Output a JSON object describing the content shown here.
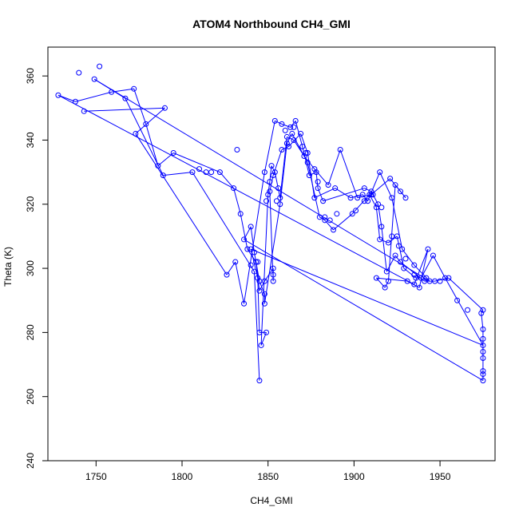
{
  "chart_data": {
    "type": "line",
    "title": "ATOM4 Northbound CH4_GMI",
    "xlabel": "CH4_GMI",
    "ylabel": "Theta (K)",
    "xlim": [
      1722,
      1982
    ],
    "ylim": [
      240,
      369
    ],
    "x_ticks": [
      1750,
      1800,
      1850,
      1900,
      1950
    ],
    "y_ticks": [
      240,
      260,
      280,
      300,
      320,
      340,
      360
    ],
    "grid": false,
    "legend": "none",
    "series_color": "#0000ff",
    "marker": "open-circle",
    "series": [
      {
        "name": "",
        "points": [
          [
            1743,
            349
          ],
          [
            1790,
            350
          ],
          [
            1773,
            342
          ],
          [
            1826,
            298
          ],
          [
            1831,
            302
          ],
          [
            1836,
            289
          ],
          [
            1848,
            330
          ],
          [
            1854,
            346
          ],
          [
            1858,
            345
          ],
          [
            1863,
            344
          ],
          [
            1866,
            346
          ],
          [
            1870,
            338
          ],
          [
            1874,
            329
          ],
          [
            1878,
            330
          ],
          [
            1879,
            325
          ],
          [
            1882,
            321
          ],
          [
            1906,
            325
          ],
          [
            1910,
            324
          ],
          [
            1914,
            320
          ],
          [
            1916,
            313
          ],
          [
            1919,
            299
          ],
          [
            1924,
            304
          ],
          [
            1927,
            302
          ],
          [
            1941,
            296
          ],
          [
            1947,
            296
          ],
          [
            1955,
            297
          ],
          [
            1975,
            287
          ],
          [
            1974,
            286
          ],
          [
            1975,
            281
          ],
          [
            1975,
            278
          ],
          [
            1975,
            274
          ],
          [
            1975,
            272
          ],
          [
            1975,
            268
          ],
          [
            1975,
            267
          ],
          [
            1975,
            265
          ],
          [
            1836,
            309
          ],
          [
            1840,
            313
          ],
          [
            1842,
            305
          ],
          [
            1845,
            296
          ],
          [
            1848,
            292
          ],
          [
            1848,
            289
          ],
          [
            1857,
            320
          ],
          [
            1861,
            339
          ],
          [
            1864,
            342
          ],
          [
            1873,
            333
          ],
          [
            1880,
            316
          ],
          [
            1883,
            315
          ],
          [
            1888,
            312
          ],
          [
            1899,
            317
          ],
          [
            1909,
            323
          ],
          [
            1913,
            319
          ],
          [
            1915,
            309
          ],
          [
            1920,
            308
          ],
          [
            1925,
            310
          ],
          [
            1929,
            300
          ],
          [
            1936,
            297
          ],
          [
            1939,
            297
          ],
          [
            1946,
            304
          ],
          [
            1953,
            297
          ],
          [
            1975,
            276
          ],
          [
            1840,
            306
          ],
          [
            1844,
            297
          ],
          [
            1845,
            280
          ],
          [
            1849,
            280
          ],
          [
            1846,
            276
          ],
          [
            1850,
            323
          ],
          [
            1851,
            327
          ],
          [
            1852,
            332
          ],
          [
            1854,
            330
          ],
          [
            1857,
            322
          ],
          [
            1861,
            341
          ],
          [
            1865,
            340
          ],
          [
            1871,
            335
          ],
          [
            1877,
            331
          ],
          [
            1885,
            326
          ],
          [
            1892,
            337
          ],
          [
            1902,
            322
          ],
          [
            1910,
            323
          ],
          [
            1921,
            328
          ],
          [
            1927,
            324
          ],
          [
            1930,
            322
          ],
          [
            1924,
            326
          ],
          [
            1920,
            296
          ],
          [
            1918,
            294
          ],
          [
            1913,
            297
          ],
          [
            1931,
            296
          ],
          [
            1938,
            294
          ],
          [
            1943,
            306
          ],
          [
            1935,
            295
          ],
          [
            1728,
            354
          ],
          [
            1738,
            352
          ],
          [
            1759,
            355
          ],
          [
            1772,
            356
          ],
          [
            1779,
            345
          ],
          [
            1786,
            332
          ],
          [
            1795,
            336
          ],
          [
            1822,
            330
          ],
          [
            1830,
            325
          ],
          [
            1834,
            317
          ],
          [
            1838,
            306
          ],
          [
            1843,
            302
          ],
          [
            1845,
            293
          ],
          [
            1848,
            296
          ],
          [
            1853,
            300
          ],
          [
            1853,
            298
          ],
          [
            1853,
            296
          ],
          [
            1851,
            324
          ],
          [
            1853,
            329
          ],
          [
            1858,
            337
          ],
          [
            1862,
            338
          ],
          [
            1869,
            342
          ],
          [
            1873,
            336
          ],
          [
            1877,
            322
          ],
          [
            1889,
            325
          ],
          [
            1898,
            322
          ],
          [
            1905,
            323
          ],
          [
            1908,
            321
          ],
          [
            1915,
            330
          ],
          [
            1922,
            322
          ],
          [
            1928,
            306
          ],
          [
            1935,
            301
          ],
          [
            1944,
            296
          ],
          [
            1749,
            359
          ],
          [
            1767,
            353
          ],
          [
            1789,
            329
          ],
          [
            1806,
            330
          ],
          [
            1842,
            299
          ],
          [
            1845,
            265
          ]
        ]
      }
    ],
    "scatter_only": [
      [
        1740,
        361
      ],
      [
        1752,
        363
      ],
      [
        1810,
        331
      ],
      [
        1814,
        330
      ],
      [
        1817,
        330
      ],
      [
        1832,
        337
      ],
      [
        1840,
        301
      ],
      [
        1844,
        302
      ],
      [
        1849,
        321
      ],
      [
        1855,
        321
      ],
      [
        1856,
        325
      ],
      [
        1860,
        343
      ],
      [
        1865,
        344
      ],
      [
        1872,
        336
      ],
      [
        1879,
        327
      ],
      [
        1883,
        316
      ],
      [
        1886,
        315
      ],
      [
        1890,
        317
      ],
      [
        1901,
        318
      ],
      [
        1906,
        321
      ],
      [
        1911,
        323
      ],
      [
        1916,
        319
      ],
      [
        1922,
        310
      ],
      [
        1926,
        307
      ],
      [
        1930,
        303
      ],
      [
        1935,
        298
      ],
      [
        1942,
        297
      ],
      [
        1950,
        296
      ],
      [
        1960,
        290
      ],
      [
        1966,
        287
      ]
    ]
  }
}
